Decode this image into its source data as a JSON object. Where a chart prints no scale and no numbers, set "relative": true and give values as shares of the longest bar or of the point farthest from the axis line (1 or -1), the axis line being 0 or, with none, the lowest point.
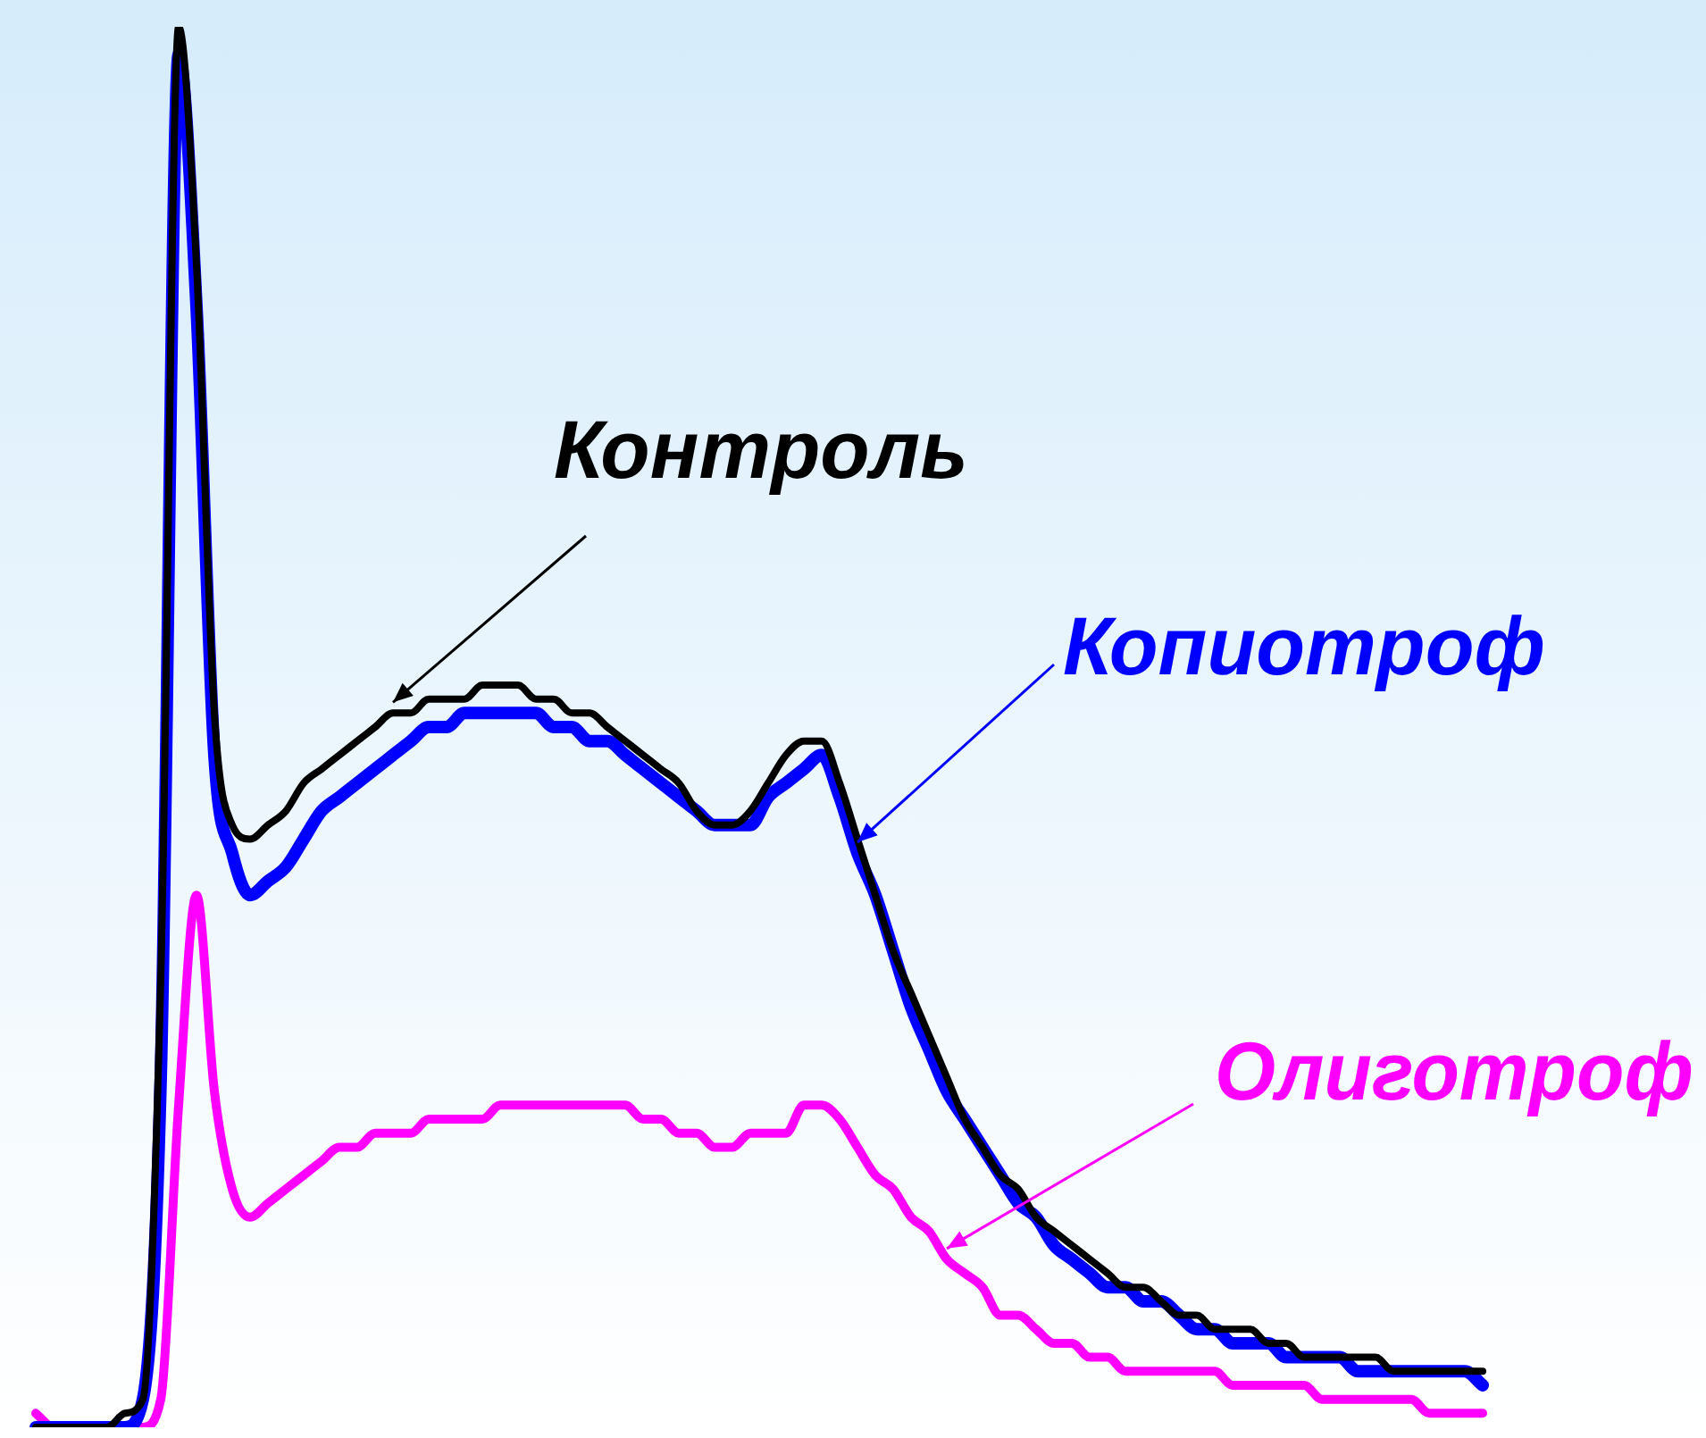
{
  "chart_data": {
    "type": "line",
    "relative": true,
    "legend": false,
    "marker": "none",
    "line_style": "solid",
    "categories": [
      null,
      null,
      null,
      null,
      null,
      null,
      null,
      null,
      null,
      null,
      null,
      null,
      null,
      null,
      null,
      null,
      null,
      null,
      null,
      null,
      null,
      null,
      null,
      null,
      null,
      null,
      null,
      null,
      null,
      null,
      null,
      null,
      null,
      null,
      null,
      null,
      null,
      null,
      null,
      null,
      null,
      null,
      null,
      null,
      null,
      null,
      null,
      null,
      null,
      null,
      null,
      null,
      null,
      null,
      null,
      null,
      null,
      null,
      null,
      null,
      null,
      null,
      null,
      null,
      null,
      null,
      null,
      null,
      null,
      null,
      null,
      null,
      null,
      null,
      null,
      null,
      null,
      null,
      null,
      null,
      null,
      null
    ],
    "series": [
      {
        "name": "Контроль",
        "color": "#000000",
        "values": [
          0,
          0,
          0,
          0,
          0,
          0.01,
          0.02,
          0.32,
          1,
          0.83,
          0.51,
          0.43,
          0.42,
          0.43,
          0.44,
          0.46,
          0.47,
          0.48,
          0.49,
          0.5,
          0.51,
          0.51,
          0.52,
          0.52,
          0.52,
          0.53,
          0.53,
          0.53,
          0.52,
          0.52,
          0.51,
          0.51,
          0.5,
          0.49,
          0.48,
          0.47,
          0.46,
          0.44,
          0.43,
          0.43,
          0.44,
          0.46,
          0.48,
          0.49,
          0.49,
          0.46,
          0.42,
          0.38,
          0.34,
          0.31,
          0.28,
          0.25,
          0.22,
          0.2,
          0.18,
          0.17,
          0.15,
          0.14,
          0.13,
          0.12,
          0.11,
          0.1,
          0.1,
          0.09,
          0.08,
          0.08,
          0.07,
          0.07,
          0.07,
          0.06,
          0.06,
          0.05,
          0.05,
          0.05,
          0.05,
          0.05,
          0.04,
          0.04,
          0.04,
          0.04,
          0.04,
          0.04
        ]
      },
      {
        "name": "Копиотроф",
        "color": "#0000ff",
        "values": [
          0,
          0,
          0,
          0,
          0,
          0,
          0.02,
          0.25,
          0.98,
          0.8,
          0.48,
          0.41,
          0.38,
          0.39,
          0.4,
          0.42,
          0.44,
          0.45,
          0.46,
          0.47,
          0.48,
          0.49,
          0.5,
          0.5,
          0.51,
          0.51,
          0.51,
          0.51,
          0.51,
          0.5,
          0.5,
          0.49,
          0.49,
          0.48,
          0.47,
          0.46,
          0.45,
          0.44,
          0.43,
          0.43,
          0.43,
          0.45,
          0.46,
          0.47,
          0.48,
          0.45,
          0.41,
          0.38,
          0.34,
          0.3,
          0.27,
          0.24,
          0.22,
          0.2,
          0.18,
          0.16,
          0.15,
          0.13,
          0.12,
          0.11,
          0.1,
          0.1,
          0.09,
          0.09,
          0.08,
          0.07,
          0.07,
          0.06,
          0.06,
          0.06,
          0.05,
          0.05,
          0.05,
          0.05,
          0.04,
          0.04,
          0.04,
          0.04,
          0.04,
          0.04,
          0.04,
          0.03
        ]
      },
      {
        "name": "Олиготроф",
        "color": "#ff00ff",
        "values": [
          0.01,
          0,
          0,
          0,
          0,
          0,
          0,
          0.02,
          0.23,
          0.38,
          0.24,
          0.17,
          0.15,
          0.16,
          0.17,
          0.18,
          0.19,
          0.2,
          0.2,
          0.21,
          0.21,
          0.21,
          0.22,
          0.22,
          0.22,
          0.22,
          0.23,
          0.23,
          0.23,
          0.23,
          0.23,
          0.23,
          0.23,
          0.23,
          0.22,
          0.22,
          0.21,
          0.21,
          0.2,
          0.2,
          0.21,
          0.21,
          0.21,
          0.23,
          0.23,
          0.22,
          0.2,
          0.18,
          0.17,
          0.15,
          0.14,
          0.12,
          0.11,
          0.1,
          0.08,
          0.08,
          0.07,
          0.06,
          0.06,
          0.05,
          0.05,
          0.04,
          0.04,
          0.04,
          0.04,
          0.04,
          0.04,
          0.03,
          0.03,
          0.03,
          0.03,
          0.03,
          0.02,
          0.02,
          0.02,
          0.02,
          0.02,
          0.02,
          0.01,
          0.01,
          0.01,
          0.01
        ]
      }
    ]
  }
}
